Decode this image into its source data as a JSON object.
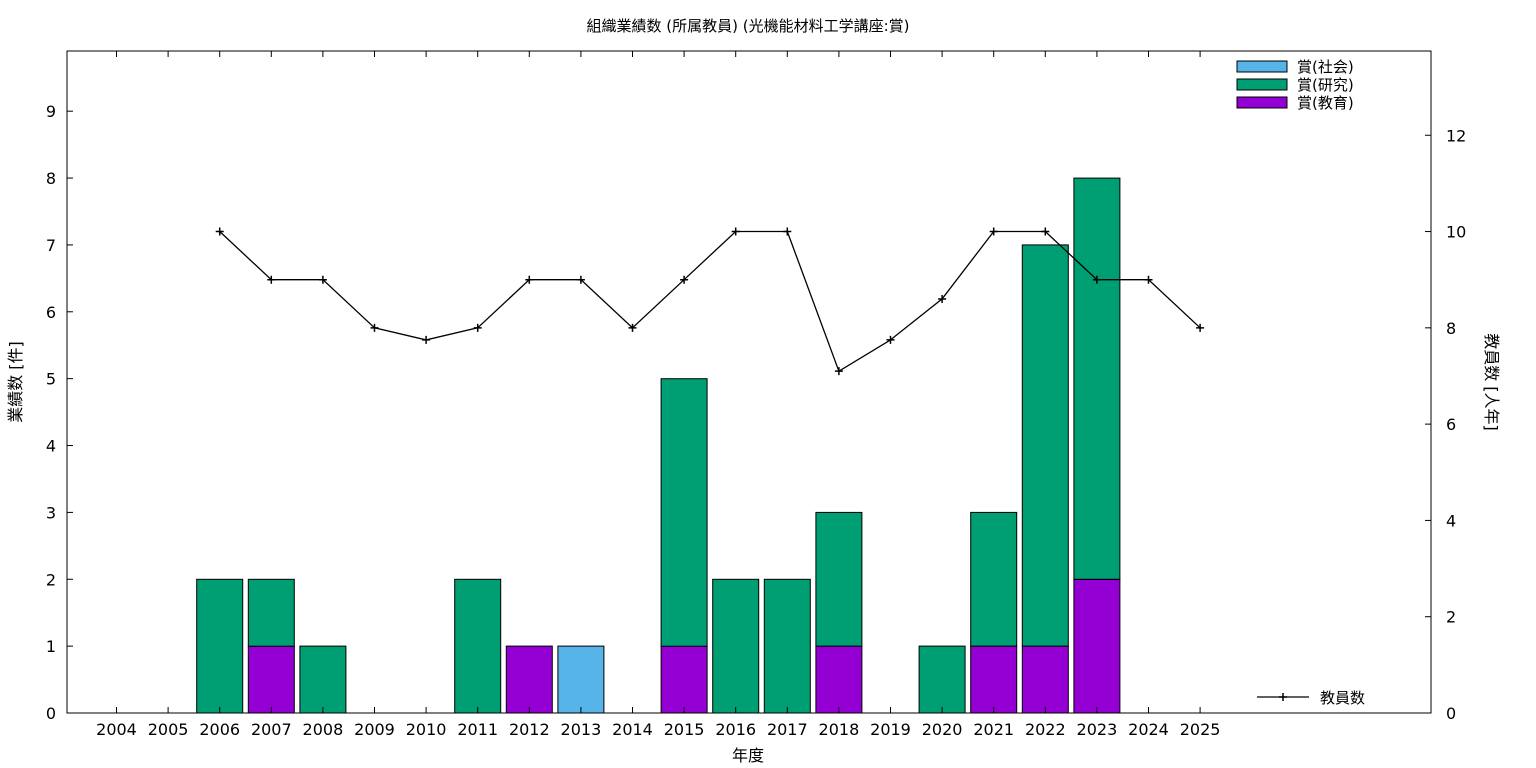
{
  "chart_data": {
    "type": "bar",
    "title": "組織業績数 (所属教員) (光機能材料工学講座:賞)",
    "xlabel": "年度",
    "ylabel": "業績数 [件]",
    "y2label": "教員数 [人年]",
    "stacked": true,
    "ylim": [
      0,
      9.9
    ],
    "y2lim": [
      0,
      13.75
    ],
    "yticks": [
      "0",
      "1",
      "2",
      "3",
      "4",
      "5",
      "6",
      "7",
      "8",
      "9"
    ],
    "y2ticks": [
      "0",
      "2",
      "4",
      "6",
      "8",
      "10",
      "12"
    ],
    "categories": [
      "2004",
      "2005",
      "2006",
      "2007",
      "2008",
      "2009",
      "2010",
      "2011",
      "2012",
      "2013",
      "2014",
      "2015",
      "2016",
      "2017",
      "2018",
      "2019",
      "2020",
      "2021",
      "2022",
      "2023",
      "2024",
      "2025"
    ],
    "series": [
      {
        "name": "賞(教育)",
        "color": "#9400d3",
        "values": [
          0,
          0,
          0,
          1,
          0,
          0,
          0,
          0,
          1,
          0,
          0,
          1,
          0,
          0,
          1,
          0,
          0,
          1,
          1,
          2,
          0,
          0
        ]
      },
      {
        "name": "賞(研究)",
        "color": "#009e73",
        "values": [
          0,
          0,
          2,
          1,
          1,
          0,
          0,
          2,
          0,
          0,
          0,
          4,
          2,
          2,
          2,
          0,
          1,
          2,
          6,
          6,
          0,
          0
        ]
      },
      {
        "name": "賞(社会)",
        "color": "#56b4e9",
        "values": [
          0,
          0,
          0,
          0,
          0,
          0,
          0,
          0,
          0,
          1,
          0,
          0,
          0,
          0,
          0,
          0,
          0,
          0,
          0,
          0,
          0,
          0
        ]
      }
    ],
    "line": {
      "name": "教員数",
      "color": "#000000",
      "axis": "y2",
      "values": [
        null,
        null,
        10,
        9,
        9,
        8,
        7.75,
        8,
        9,
        9,
        8,
        9,
        10,
        10,
        7.1,
        7.75,
        8.6,
        10,
        10,
        9,
        9,
        8
      ]
    },
    "grid": false,
    "legend": "top-right",
    "line_legend": "bottom-right"
  }
}
